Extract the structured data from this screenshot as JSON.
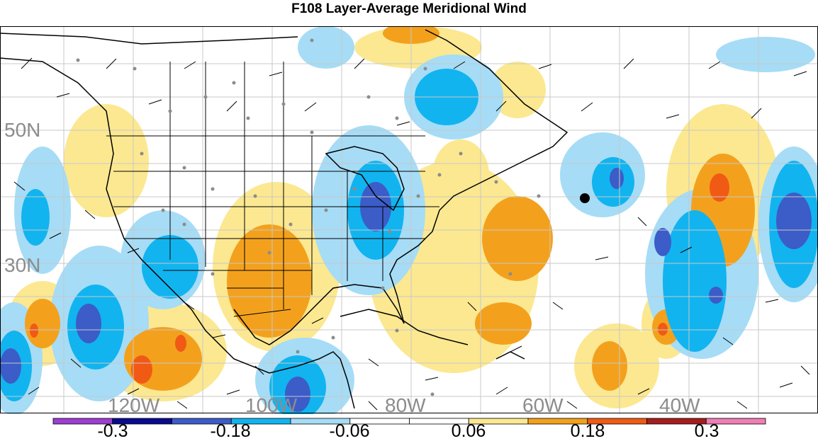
{
  "title": "F108 Layer-Average Meridional Wind",
  "latitude_labels": [
    "50N",
    "30N"
  ],
  "longitude_labels": [
    "120W",
    "100W",
    "80W",
    "60W",
    "40W"
  ],
  "colorbar": {
    "colors": [
      "#9b3fd0",
      "#0a0a8c",
      "#3c5cc8",
      "#11b4ef",
      "#a6dcf6",
      "#ffffff",
      "#ffffff",
      "#fbe891",
      "#f3a11d",
      "#f05a14",
      "#a51e1e",
      "#ef7fb4"
    ],
    "labels": [
      "-0.3",
      "-0.18",
      "-0.06",
      "0.06",
      "0.18",
      "0.3"
    ]
  },
  "marker_colors": {
    "observation_dot": "#8c8c8c",
    "highlight_dot": "#000000"
  }
}
